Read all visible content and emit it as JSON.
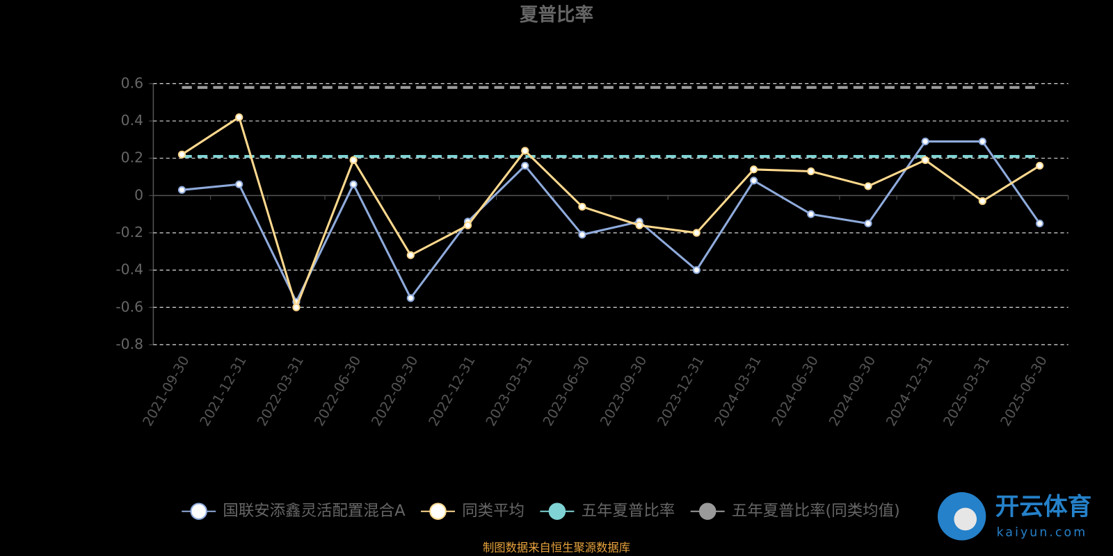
{
  "chart_data": {
    "type": "line",
    "title": "夏普比率",
    "categories": [
      "2021-09-30",
      "2021-12-31",
      "2022-03-31",
      "2022-06-30",
      "2022-09-30",
      "2022-12-31",
      "2023-03-31",
      "2023-06-30",
      "2023-09-30",
      "2023-12-31",
      "2024-03-31",
      "2024-06-30",
      "2024-09-30",
      "2024-12-31",
      "2025-03-31",
      "2025-06-30"
    ],
    "series": [
      {
        "name": "国联安添鑫灵活配置混合A",
        "color": "#8fabdc",
        "values": [
          0.03,
          0.06,
          -0.57,
          0.06,
          -0.55,
          -0.14,
          0.16,
          -0.21,
          -0.14,
          -0.4,
          0.08,
          -0.1,
          -0.15,
          0.29,
          0.29,
          -0.15
        ]
      },
      {
        "name": "同类平均",
        "color": "#ffd98e",
        "values": [
          0.22,
          0.42,
          -0.6,
          0.19,
          -0.32,
          -0.16,
          0.24,
          -0.06,
          -0.16,
          -0.2,
          0.14,
          0.13,
          0.05,
          0.19,
          -0.03,
          0.16
        ]
      },
      {
        "name": "五年夏普比率",
        "color": "#7fd3d4",
        "dashed": true,
        "values": [
          0.21,
          0.21,
          0.21,
          0.21,
          0.21,
          0.21,
          0.21,
          0.21,
          0.21,
          0.21,
          0.21,
          0.21,
          0.21,
          0.21,
          0.21,
          0.21
        ]
      },
      {
        "name": "五年夏普比率(同类均值)",
        "color": "#9a9a9a",
        "dashed": true,
        "values": [
          0.58,
          0.58,
          0.58,
          0.58,
          0.58,
          0.58,
          0.58,
          0.58,
          0.58,
          0.58,
          0.58,
          0.58,
          0.58,
          0.58,
          0.58,
          0.58
        ]
      }
    ],
    "ylim": [
      -0.8,
      0.6
    ],
    "yticks": [
      0.6,
      0.4,
      0.2,
      0,
      -0.2,
      -0.4,
      -0.6,
      -0.8
    ],
    "grid": true,
    "source": "制图数据来自恒生聚源数据库",
    "watermark": {
      "title": "开云体育",
      "url": "kaiyun.com"
    }
  }
}
